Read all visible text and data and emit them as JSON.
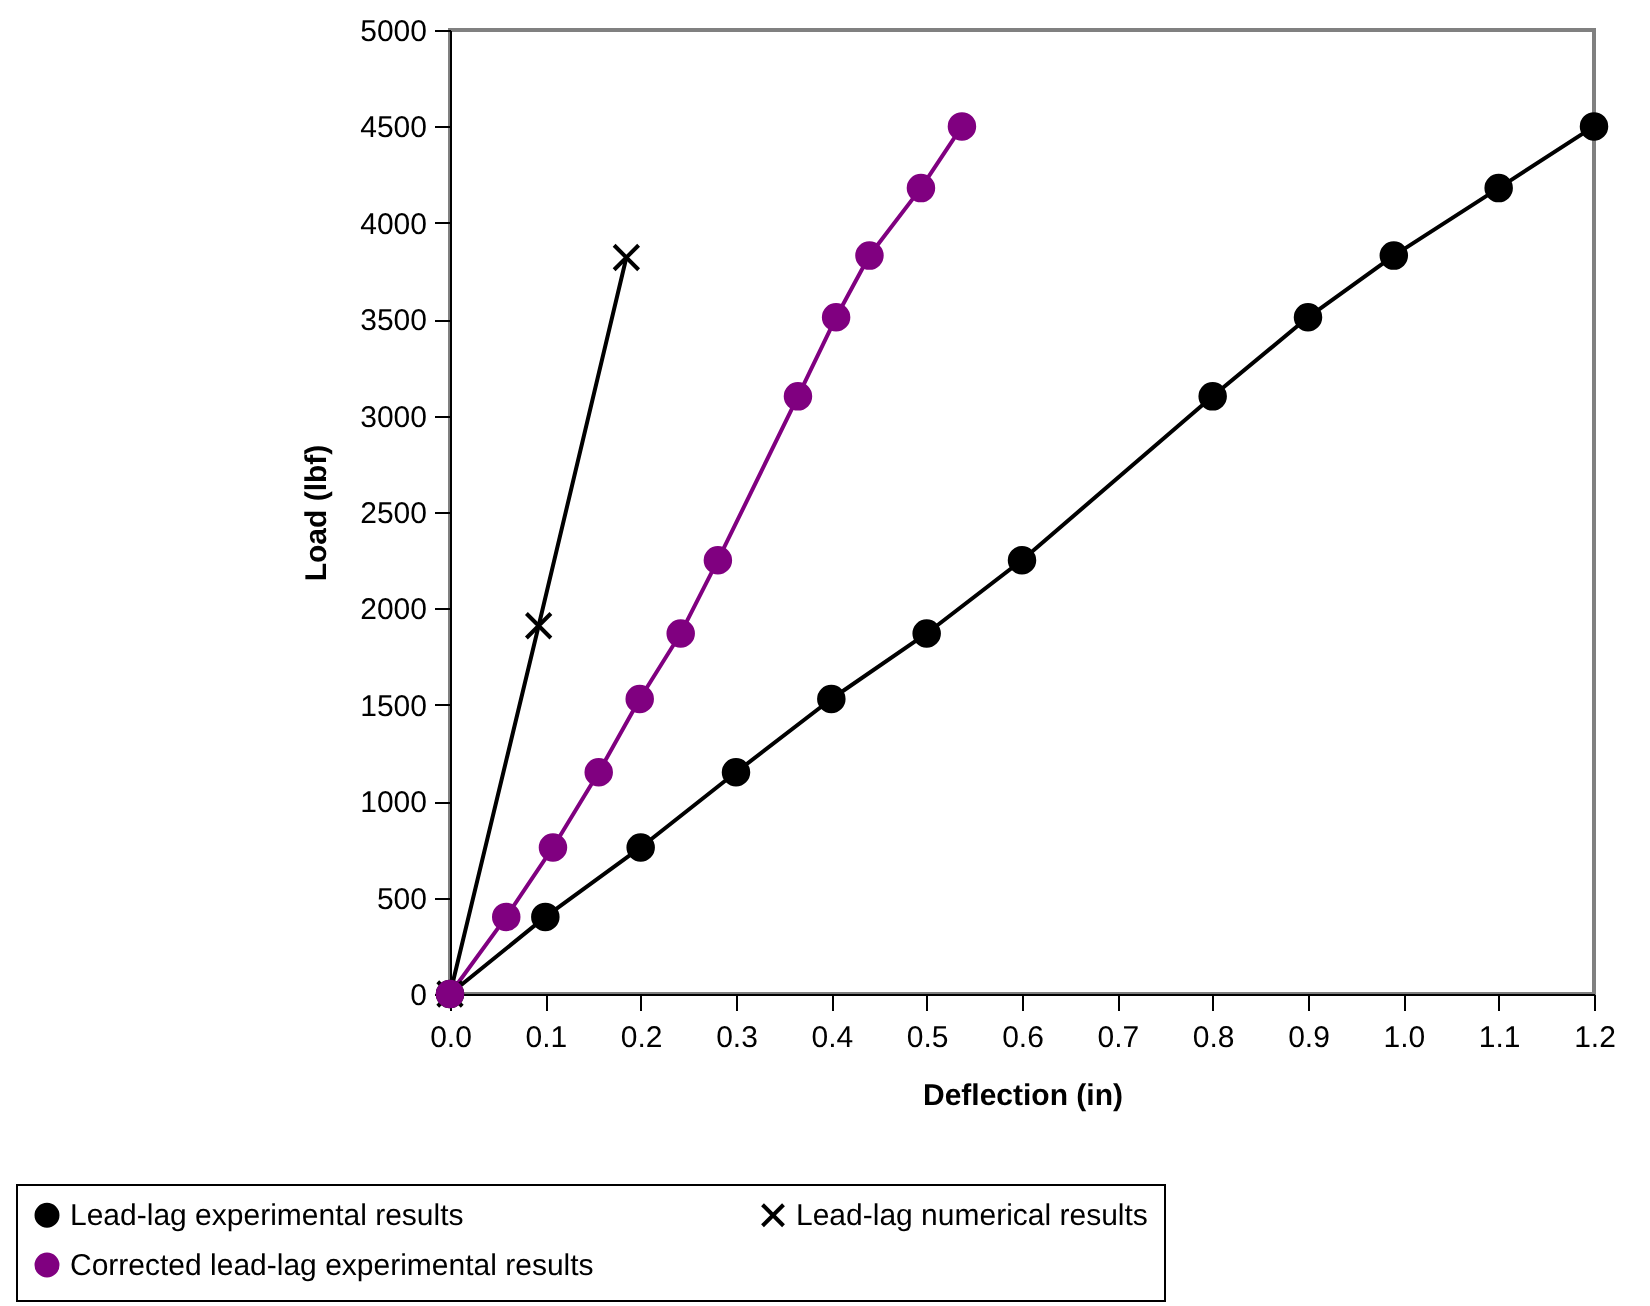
{
  "chart_data": {
    "type": "line",
    "xlabel": "Deflection (in)",
    "ylabel": "Load (lbf)",
    "xlim": [
      0,
      1.2
    ],
    "xticks": [
      {
        "value": 0,
        "label": "0.0"
      },
      {
        "value": 0.1,
        "label": "0.1"
      },
      {
        "value": 0.2,
        "label": "0.2"
      },
      {
        "value": 0.3,
        "label": "0.3"
      },
      {
        "value": 0.4,
        "label": "0.4"
      },
      {
        "value": 0.5,
        "label": "0.5"
      },
      {
        "value": 0.6,
        "label": "0.6"
      },
      {
        "value": 0.7,
        "label": "0.7"
      },
      {
        "value": 0.8,
        "label": "0.8"
      },
      {
        "value": 0.9,
        "label": "0.9"
      },
      {
        "value": 1,
        "label": "1.0"
      },
      {
        "value": 1.1,
        "label": "1.1"
      },
      {
        "value": 1.2,
        "label": "1.2"
      }
    ],
    "ylim": [
      0,
      5000
    ],
    "yticks": [
      0,
      500,
      1000,
      1500,
      2000,
      2500,
      3000,
      3500,
      4000,
      4500,
      5000
    ],
    "grid": false,
    "legend": "bottom",
    "line_style": "solid",
    "series": [
      {
        "name": "Lead-lag experimental results",
        "color": "#000000",
        "marker": "circle",
        "x": [
          0,
          0.1,
          0.2,
          0.3,
          0.4,
          0.5,
          0.6,
          0.8,
          0.9,
          0.99,
          1.1,
          1.2
        ],
        "values": [
          0,
          400,
          760,
          1150,
          1530,
          1870,
          2250,
          3100,
          3510,
          3830,
          4180,
          4500
        ]
      },
      {
        "name": "Lead-lag numerical results",
        "color": "#000000",
        "marker": "cross",
        "x": [
          0,
          0.093,
          0.185
        ],
        "values": [
          0,
          1910,
          3820
        ]
      },
      {
        "name": "Corrected lead-lag experimental results",
        "color": "#800080",
        "marker": "circle",
        "x": [
          0,
          0.059,
          0.108,
          0.156,
          0.199,
          0.242,
          0.281,
          0.365,
          0.405,
          0.44,
          0.494,
          0.537
        ],
        "values": [
          0,
          400,
          760,
          1150,
          1530,
          1870,
          2250,
          3100,
          3510,
          3830,
          4180,
          4500
        ]
      }
    ]
  }
}
